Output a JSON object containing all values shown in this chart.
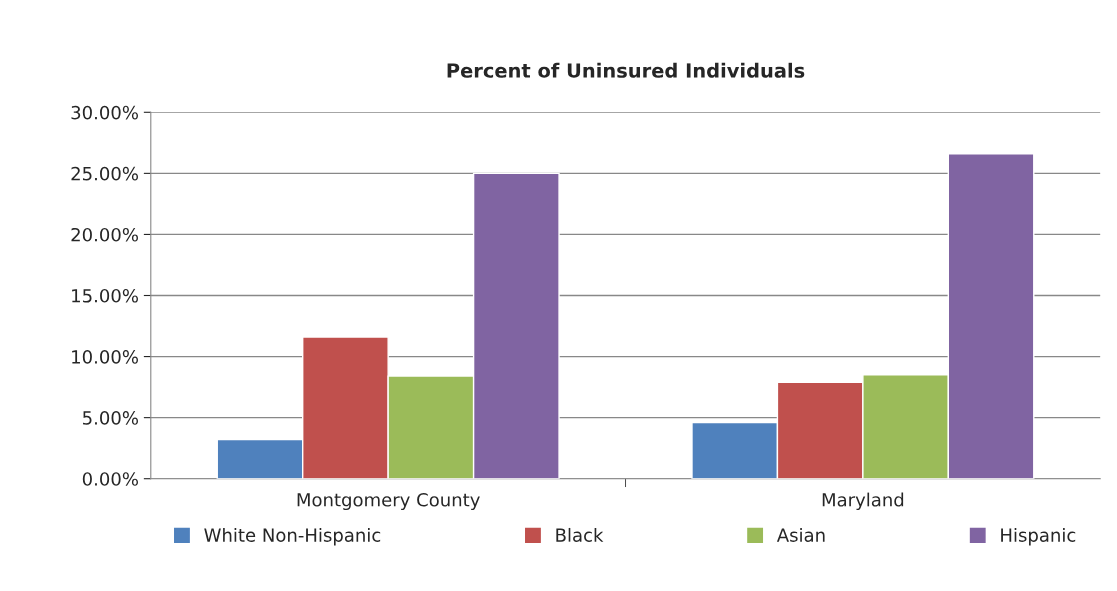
{
  "chart_data": {
    "type": "bar",
    "title": "Percent of Uninsured Individuals",
    "categories": [
      "Montgomery County",
      "Maryland"
    ],
    "series": [
      {
        "name": "White Non-Hispanic",
        "color": "#4f81bd",
        "values": [
          3.2,
          4.6
        ]
      },
      {
        "name": "Black",
        "color": "#c0504d",
        "values": [
          11.6,
          7.9
        ]
      },
      {
        "name": "Asian",
        "color": "#9bbb59",
        "values": [
          8.4,
          8.5
        ]
      },
      {
        "name": "Hispanic",
        "color": "#8064a2",
        "values": [
          25.0,
          26.6
        ]
      }
    ],
    "ylim": [
      0,
      30
    ],
    "yticks": [
      {
        "value": 0,
        "label": "0.00%"
      },
      {
        "value": 5,
        "label": "5.00%"
      },
      {
        "value": 10,
        "label": "10.00%"
      },
      {
        "value": 15,
        "label": "15.00%"
      },
      {
        "value": 20,
        "label": "20.00%"
      },
      {
        "value": 25,
        "label": "25.00%"
      },
      {
        "value": 30,
        "label": "30.00%"
      }
    ],
    "grid": "y",
    "legend": "bottom"
  }
}
